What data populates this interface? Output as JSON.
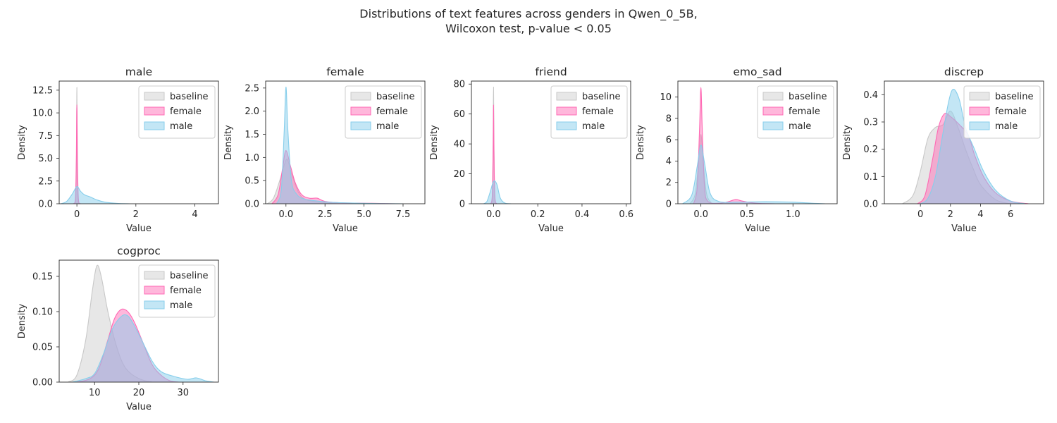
{
  "suptitle": {
    "line1": "Distributions of text features across genders in Qwen_0_5B,",
    "line2": "Wilcoxon test, p-value < 0.05"
  },
  "colors": {
    "baseline": "#d9d9d9",
    "female": "#ff69b4",
    "male": "#87ceeb",
    "overlap": "#b8b0e0"
  },
  "chart_data": [
    {
      "type": "area",
      "title": "male",
      "xlabel": "Value",
      "ylabel": "Density",
      "xlim": [
        -0.6,
        4.8
      ],
      "ylim": [
        0,
        13.5
      ],
      "xticks": [
        0,
        2,
        4
      ],
      "xtick_labels": [
        "0",
        "2",
        "4"
      ],
      "yticks": [
        0,
        2.5,
        5,
        7.5,
        10,
        12.5
      ],
      "ytick_labels": [
        "0.0",
        "2.5",
        "5.0",
        "7.5",
        "10.0",
        "12.5"
      ],
      "legend": [
        "baseline",
        "female",
        "male"
      ],
      "legend_loc": "upper right",
      "series": [
        {
          "name": "baseline",
          "points": [
            [
              -0.1,
              0
            ],
            [
              -0.04,
              0.5
            ],
            [
              -0.015,
              5
            ],
            [
              0,
              12.8
            ],
            [
              0.015,
              5
            ],
            [
              0.04,
              0.5
            ],
            [
              0.1,
              0
            ]
          ]
        },
        {
          "name": "female",
          "points": [
            [
              -0.12,
              0
            ],
            [
              -0.05,
              0.6
            ],
            [
              -0.02,
              5
            ],
            [
              0,
              10.9
            ],
            [
              0.02,
              5
            ],
            [
              0.05,
              0.6
            ],
            [
              0.12,
              0
            ]
          ]
        },
        {
          "name": "male",
          "points": [
            [
              -0.55,
              0
            ],
            [
              -0.35,
              0.25
            ],
            [
              -0.15,
              1.1
            ],
            [
              0,
              1.9
            ],
            [
              0.12,
              1.4
            ],
            [
              0.25,
              1.0
            ],
            [
              0.45,
              0.75
            ],
            [
              0.7,
              0.4
            ],
            [
              1.0,
              0.15
            ],
            [
              1.4,
              0.04
            ],
            [
              1.8,
              0
            ]
          ]
        }
      ]
    },
    {
      "type": "area",
      "title": "female",
      "xlabel": "Value",
      "ylabel": "Density",
      "xlim": [
        -1.3,
        8.9
      ],
      "ylim": [
        0,
        2.65
      ],
      "xticks": [
        0,
        2.5,
        5,
        7.5
      ],
      "xtick_labels": [
        "0.0",
        "2.5",
        "5.0",
        "7.5"
      ],
      "yticks": [
        0,
        0.5,
        1,
        1.5,
        2,
        2.5
      ],
      "ytick_labels": [
        "0.0",
        "0.5",
        "1.0",
        "1.5",
        "2.0",
        "2.5"
      ],
      "legend": [
        "baseline",
        "female",
        "male"
      ],
      "legend_loc": "upper right",
      "series": [
        {
          "name": "baseline",
          "points": [
            [
              -1.2,
              0
            ],
            [
              -0.8,
              0.12
            ],
            [
              -0.4,
              0.5
            ],
            [
              -0.1,
              0.85
            ],
            [
              0.1,
              0.95
            ],
            [
              0.4,
              0.6
            ],
            [
              0.8,
              0.25
            ],
            [
              1.2,
              0.1
            ],
            [
              1.8,
              0.05
            ],
            [
              2.5,
              0.02
            ],
            [
              3.5,
              0
            ]
          ]
        },
        {
          "name": "female",
          "points": [
            [
              -0.9,
              0
            ],
            [
              -0.5,
              0.2
            ],
            [
              -0.2,
              0.8
            ],
            [
              0,
              1.15
            ],
            [
              0.3,
              0.8
            ],
            [
              0.6,
              0.45
            ],
            [
              1.0,
              0.2
            ],
            [
              1.5,
              0.12
            ],
            [
              2.0,
              0.12
            ],
            [
              2.5,
              0.05
            ],
            [
              3.5,
              0.02
            ],
            [
              5.5,
              0.01
            ],
            [
              7,
              0
            ]
          ]
        },
        {
          "name": "male",
          "points": [
            [
              -0.6,
              0
            ],
            [
              -0.3,
              0.3
            ],
            [
              -0.12,
              1.5
            ],
            [
              0,
              2.52
            ],
            [
              0.12,
              1.6
            ],
            [
              0.35,
              0.5
            ],
            [
              0.7,
              0.2
            ],
            [
              1.2,
              0.1
            ],
            [
              2.0,
              0.06
            ],
            [
              3,
              0.03
            ],
            [
              5,
              0.01
            ],
            [
              7.5,
              0
            ]
          ]
        }
      ]
    },
    {
      "type": "area",
      "title": "friend",
      "xlabel": "Value",
      "ylabel": "Density",
      "xlim": [
        -0.1,
        0.62
      ],
      "ylim": [
        0,
        82
      ],
      "xticks": [
        0,
        0.2,
        0.4,
        0.6
      ],
      "xtick_labels": [
        "0.0",
        "0.2",
        "0.4",
        "0.6"
      ],
      "yticks": [
        0,
        20,
        40,
        60,
        80
      ],
      "ytick_labels": [
        "0",
        "20",
        "40",
        "60",
        "80"
      ],
      "legend": [
        "baseline",
        "female",
        "male"
      ],
      "legend_loc": "upper right",
      "series": [
        {
          "name": "baseline",
          "points": [
            [
              -0.012,
              0
            ],
            [
              -0.005,
              6
            ],
            [
              -0.002,
              40
            ],
            [
              0,
              78
            ],
            [
              0.002,
              40
            ],
            [
              0.005,
              6
            ],
            [
              0.012,
              0
            ]
          ]
        },
        {
          "name": "female",
          "points": [
            [
              -0.014,
              0
            ],
            [
              -0.006,
              5
            ],
            [
              -0.002,
              35
            ],
            [
              0,
              66
            ],
            [
              0.002,
              35
            ],
            [
              0.006,
              5
            ],
            [
              0.014,
              0
            ]
          ]
        },
        {
          "name": "male",
          "points": [
            [
              -0.045,
              0
            ],
            [
              -0.03,
              1.5
            ],
            [
              -0.015,
              8
            ],
            [
              0,
              15
            ],
            [
              0.015,
              13
            ],
            [
              0.03,
              4
            ],
            [
              0.05,
              0.5
            ],
            [
              0.08,
              0
            ]
          ]
        }
      ]
    },
    {
      "type": "area",
      "title": "emo_sad",
      "xlabel": "Value",
      "ylabel": "Density",
      "xlim": [
        -0.25,
        1.48
      ],
      "ylim": [
        0,
        11.5
      ],
      "xticks": [
        0,
        0.5,
        1.0
      ],
      "xtick_labels": [
        "0.0",
        "0.5",
        "1.0"
      ],
      "yticks": [
        0,
        2,
        4,
        6,
        8,
        10
      ],
      "ytick_labels": [
        "0",
        "2",
        "4",
        "6",
        "8",
        "10"
      ],
      "legend": [
        "baseline",
        "female",
        "male"
      ],
      "legend_loc": "upper right",
      "series": [
        {
          "name": "baseline",
          "points": [
            [
              -0.12,
              0
            ],
            [
              -0.06,
              1
            ],
            [
              -0.02,
              4.5
            ],
            [
              0,
              6.5
            ],
            [
              0.02,
              4.5
            ],
            [
              0.06,
              1
            ],
            [
              0.12,
              0
            ]
          ]
        },
        {
          "name": "female",
          "points": [
            [
              -0.08,
              0
            ],
            [
              -0.04,
              1.5
            ],
            [
              -0.015,
              7
            ],
            [
              0,
              10.9
            ],
            [
              0.015,
              7
            ],
            [
              0.04,
              1.5
            ],
            [
              0.08,
              0.2
            ],
            [
              0.2,
              0.05
            ],
            [
              0.3,
              0.2
            ],
            [
              0.38,
              0.4
            ],
            [
              0.45,
              0.25
            ],
            [
              0.6,
              0.05
            ],
            [
              0.8,
              0
            ]
          ]
        },
        {
          "name": "male",
          "points": [
            [
              -0.2,
              0
            ],
            [
              -0.1,
              0.8
            ],
            [
              -0.04,
              3.5
            ],
            [
              0,
              5.5
            ],
            [
              0.04,
              3.8
            ],
            [
              0.1,
              1.0
            ],
            [
              0.2,
              0.2
            ],
            [
              0.4,
              0.15
            ],
            [
              0.7,
              0.2
            ],
            [
              1.0,
              0.15
            ],
            [
              1.2,
              0.05
            ],
            [
              1.35,
              0
            ]
          ]
        }
      ]
    },
    {
      "type": "area",
      "title": "discrep",
      "xlabel": "Value",
      "ylabel": "Density",
      "xlim": [
        -2.4,
        8.2
      ],
      "ylim": [
        0,
        0.45
      ],
      "xticks": [
        0,
        2,
        4,
        6
      ],
      "xtick_labels": [
        "0",
        "2",
        "4",
        "6"
      ],
      "yticks": [
        0,
        0.1,
        0.2,
        0.3,
        0.4
      ],
      "ytick_labels": [
        "0.0",
        "0.1",
        "0.2",
        "0.3",
        "0.4"
      ],
      "legend": [
        "baseline",
        "female",
        "male"
      ],
      "legend_loc": "upper right",
      "series": [
        {
          "name": "baseline",
          "points": [
            [
              -1.2,
              0
            ],
            [
              -0.5,
              0.03
            ],
            [
              0,
              0.12
            ],
            [
              0.5,
              0.24
            ],
            [
              1.0,
              0.28
            ],
            [
              1.5,
              0.29
            ],
            [
              2.0,
              0.34
            ],
            [
              2.5,
              0.28
            ],
            [
              3.0,
              0.2
            ],
            [
              3.5,
              0.13
            ],
            [
              4.0,
              0.07
            ],
            [
              5.0,
              0.015
            ],
            [
              6.0,
              0
            ]
          ]
        },
        {
          "name": "female",
          "points": [
            [
              -0.2,
              0
            ],
            [
              0.3,
              0.03
            ],
            [
              0.8,
              0.16
            ],
            [
              1.2,
              0.28
            ],
            [
              1.6,
              0.33
            ],
            [
              2.0,
              0.32
            ],
            [
              2.6,
              0.29
            ],
            [
              3.2,
              0.25
            ],
            [
              3.6,
              0.18
            ],
            [
              4.2,
              0.1
            ],
            [
              5.0,
              0.04
            ],
            [
              6.0,
              0.01
            ],
            [
              7.2,
              0
            ]
          ]
        },
        {
          "name": "male",
          "points": [
            [
              0,
              0
            ],
            [
              0.5,
              0.02
            ],
            [
              1.0,
              0.1
            ],
            [
              1.5,
              0.26
            ],
            [
              1.9,
              0.38
            ],
            [
              2.2,
              0.42
            ],
            [
              2.6,
              0.38
            ],
            [
              3.0,
              0.28
            ],
            [
              3.6,
              0.2
            ],
            [
              4.2,
              0.12
            ],
            [
              5.0,
              0.05
            ],
            [
              6.0,
              0.01
            ],
            [
              7.0,
              0
            ]
          ]
        }
      ]
    },
    {
      "type": "area",
      "title": "cogproc",
      "xlabel": "Value",
      "ylabel": "Density",
      "xlim": [
        2,
        38
      ],
      "ylim": [
        0,
        0.173
      ],
      "xticks": [
        10,
        20,
        30
      ],
      "xtick_labels": [
        "10",
        "20",
        "30"
      ],
      "yticks": [
        0,
        0.05,
        0.1,
        0.15
      ],
      "ytick_labels": [
        "0.00",
        "0.05",
        "0.10",
        "0.15"
      ],
      "legend": [
        "baseline",
        "female",
        "male"
      ],
      "legend_loc": "upper right",
      "series": [
        {
          "name": "baseline",
          "points": [
            [
              4,
              0
            ],
            [
              6,
              0.01
            ],
            [
              8,
              0.06
            ],
            [
              9.5,
              0.13
            ],
            [
              10.5,
              0.165
            ],
            [
              11.5,
              0.15
            ],
            [
              13,
              0.1
            ],
            [
              15,
              0.05
            ],
            [
              17,
              0.02
            ],
            [
              20,
              0.005
            ],
            [
              23,
              0
            ]
          ]
        },
        {
          "name": "female",
          "points": [
            [
              6,
              0
            ],
            [
              9,
              0.005
            ],
            [
              11,
              0.02
            ],
            [
              13,
              0.06
            ],
            [
              14.5,
              0.09
            ],
            [
              16,
              0.103
            ],
            [
              17.5,
              0.1
            ],
            [
              19,
              0.085
            ],
            [
              21,
              0.055
            ],
            [
              23,
              0.025
            ],
            [
              25,
              0.01
            ],
            [
              27,
              0.002
            ],
            [
              29,
              0
            ]
          ]
        },
        {
          "name": "male",
          "points": [
            [
              5,
              0
            ],
            [
              8,
              0.005
            ],
            [
              10,
              0.012
            ],
            [
              12,
              0.04
            ],
            [
              14,
              0.075
            ],
            [
              16,
              0.093
            ],
            [
              17.5,
              0.094
            ],
            [
              19,
              0.08
            ],
            [
              21,
              0.055
            ],
            [
              23,
              0.03
            ],
            [
              25,
              0.015
            ],
            [
              28,
              0.008
            ],
            [
              31,
              0.004
            ],
            [
              33,
              0.006
            ],
            [
              35,
              0.002
            ],
            [
              37,
              0
            ]
          ]
        }
      ]
    }
  ]
}
